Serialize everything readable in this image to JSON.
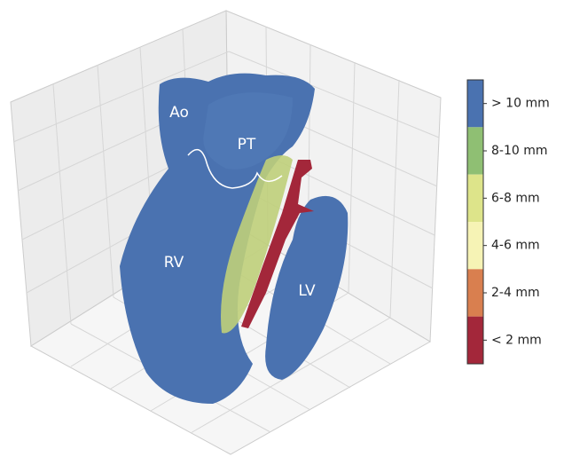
{
  "labels": {
    "ao": "Ao",
    "pt": "PT",
    "rv": "RV",
    "lv": "LV"
  },
  "colorbar": {
    "entries": [
      {
        "label": "> 10 mm",
        "color": "#4a72b0"
      },
      {
        "label": "8-10 mm",
        "color": "#8fbf73"
      },
      {
        "label": "6-8 mm",
        "color": "#dde48a"
      },
      {
        "label": "4-6 mm",
        "color": "#f6f3b5"
      },
      {
        "label": "2-4 mm",
        "color": "#d97f4f"
      },
      {
        "label": "< 2 mm",
        "color": "#a3273a"
      }
    ]
  }
}
